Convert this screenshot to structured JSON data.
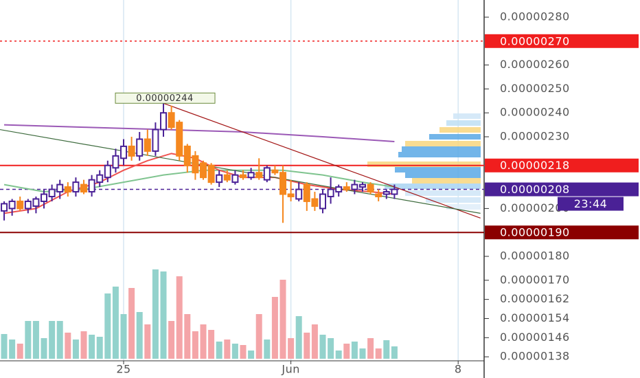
{
  "chart_data": {
    "type": "candlestick",
    "x": [
      0,
      1,
      2,
      3,
      4,
      5,
      6,
      7,
      8,
      9,
      10,
      11,
      12,
      13,
      14,
      15,
      16,
      17,
      18,
      19,
      20,
      21,
      22,
      23,
      24,
      25,
      26,
      27,
      28,
      29,
      30,
      31,
      32,
      33,
      34,
      35,
      36,
      37,
      38,
      39,
      40,
      41,
      42,
      43,
      44,
      45,
      46,
      47,
      48,
      49
    ],
    "open": [
      1.99e-06,
      2e-06,
      2.03e-06,
      2e-06,
      2.01e-06,
      2.03e-06,
      2.05e-06,
      2.07e-06,
      2.09e-06,
      2.07e-06,
      2.1e-06,
      2.07e-06,
      2.11e-06,
      2.13e-06,
      2.17e-06,
      2.21e-06,
      2.26e-06,
      2.22e-06,
      2.29e-06,
      2.24e-06,
      2.33e-06,
      2.4e-06,
      2.36e-06,
      2.26e-06,
      2.22e-06,
      2.19e-06,
      2.18e-06,
      2.11e-06,
      2.14e-06,
      2.11e-06,
      2.14e-06,
      2.13e-06,
      2.15e-06,
      2.12e-06,
      2.16e-06,
      2.15e-06,
      2.06e-06,
      2.04e-06,
      2.1e-06,
      2.04e-06,
      2e-06,
      2.05e-06,
      2.07e-06,
      2.09e-06,
      2.08e-06,
      2.09e-06,
      2.1e-06,
      2.06e-06,
      2.06e-06,
      2.06e-06
    ],
    "high": [
      2.03e-06,
      2.04e-06,
      2.05e-06,
      2.04e-06,
      2.05e-06,
      2.08e-06,
      2.1e-06,
      2.12e-06,
      2.11e-06,
      2.13e-06,
      2.12e-06,
      2.14e-06,
      2.16e-06,
      2.2e-06,
      2.25e-06,
      2.29e-06,
      2.3e-06,
      2.32e-06,
      2.33e-06,
      2.36e-06,
      2.44e-06,
      2.43e-06,
      2.37e-06,
      2.27e-06,
      2.24e-06,
      2.2e-06,
      2.19e-06,
      2.16e-06,
      2.16e-06,
      2.16e-06,
      2.16e-06,
      2.17e-06,
      2.21e-06,
      2.18e-06,
      2.18e-06,
      2.18e-06,
      2.12e-06,
      2.11e-06,
      2.11e-06,
      2.07e-06,
      2.08e-06,
      2.13e-06,
      2.1e-06,
      2.11e-06,
      2.12e-06,
      2.11e-06,
      2.11e-06,
      2.08e-06,
      2.08e-06,
      2.1e-06
    ],
    "low": [
      1.95e-06,
      1.97e-06,
      1.99e-06,
      1.98e-06,
      1.98e-06,
      2e-06,
      2.03e-06,
      2.04e-06,
      2.05e-06,
      2.05e-06,
      2.06e-06,
      2.05e-06,
      2.09e-06,
      2.11e-06,
      2.15e-06,
      2.18e-06,
      2.2e-06,
      2.2e-06,
      2.22e-06,
      2.22e-06,
      2.3e-06,
      2.33e-06,
      2.2e-06,
      2.15e-06,
      2.12e-06,
      2.12e-06,
      2.1e-06,
      2.09e-06,
      2.11e-06,
      2.1e-06,
      2.12e-06,
      2.12e-06,
      2.12e-06,
      2.11e-06,
      2.14e-06,
      1.94e-06,
      2.03e-06,
      2.03e-06,
      1.99e-06,
      1.99e-06,
      1.98e-06,
      2.02e-06,
      2.05e-06,
      2.07e-06,
      2.06e-06,
      2.07e-06,
      2.06e-06,
      2.03e-06,
      2.04e-06,
      2.04e-06
    ],
    "close": [
      2.02e-06,
      2.03e-06,
      2e-06,
      2.03e-06,
      2.04e-06,
      2.06e-06,
      2.08e-06,
      2.1e-06,
      2.07e-06,
      2.11e-06,
      2.07e-06,
      2.12e-06,
      2.14e-06,
      2.18e-06,
      2.22e-06,
      2.26e-06,
      2.22e-06,
      2.29e-06,
      2.24e-06,
      2.33e-06,
      2.4e-06,
      2.34e-06,
      2.22e-06,
      2.18e-06,
      2.15e-06,
      2.13e-06,
      2.11e-06,
      2.14e-06,
      2.12e-06,
      2.14e-06,
      2.13e-06,
      2.15e-06,
      2.13e-06,
      2.17e-06,
      2.15e-06,
      2.06e-06,
      2.05e-06,
      2.08e-06,
      2.03e-06,
      2.01e-06,
      2.06e-06,
      2.08e-06,
      2.09e-06,
      2.08e-06,
      2.1e-06,
      2.1e-06,
      2.07e-06,
      2.05e-06,
      2.07e-06,
      2.08e-06
    ],
    "volume": [
      36,
      28,
      22,
      55,
      55,
      30,
      55,
      55,
      38,
      28,
      40,
      35,
      32,
      95,
      105,
      65,
      103,
      68,
      50,
      130,
      127,
      55,
      120,
      65,
      40,
      50,
      42,
      25,
      28,
      22,
      20,
      12,
      65,
      28,
      90,
      115,
      30,
      62,
      38,
      50,
      35,
      30,
      12,
      22,
      25,
      15,
      30,
      15,
      27,
      18
    ],
    "up_color": "#4a2196",
    "down_color": "#f5881f",
    "volume_up_color": "#93d2cc",
    "volume_down_color": "#f4a5a8",
    "xlim": [
      -0.52,
      60.26
    ],
    "xticks": [
      {
        "value": 15,
        "label": "25"
      },
      {
        "value": 36,
        "label": "Jun"
      },
      {
        "value": 57,
        "label": "8"
      }
    ],
    "ylim": [
      1.3632e-06,
      2.8718e-06
    ],
    "yticks": [
      {
        "value": 2.8e-06,
        "label": "0.00000280"
      },
      {
        "value": 2.6e-06,
        "label": "0.00000260"
      },
      {
        "value": 2.5e-06,
        "label": "0.00000250"
      },
      {
        "value": 2.4e-06,
        "label": "0.00000240"
      },
      {
        "value": 2.3e-06,
        "label": "0.00000230"
      },
      {
        "value": 2e-06,
        "label": "0.00000200"
      },
      {
        "value": 1.8e-06,
        "label": "0.00000180"
      },
      {
        "value": 1.7e-06,
        "label": "0.00000170"
      },
      {
        "value": 1.62e-06,
        "label": "0.00000162"
      },
      {
        "value": 1.54e-06,
        "label": "0.00000154"
      },
      {
        "value": 1.46e-06,
        "label": "0.00000146"
      },
      {
        "value": 1.38e-06,
        "label": "0.00000138"
      }
    ],
    "grid": "x",
    "moving_averages": [
      {
        "color": "#9b59b6",
        "x": [
          0,
          10,
          20,
          30,
          40,
          49
        ],
        "values": [
          2.35e-06,
          2.34e-06,
          2.33e-06,
          2.32e-06,
          2.3e-06,
          2.28e-06
        ]
      },
      {
        "color": "#7fc48f",
        "x": [
          0,
          5,
          10,
          15,
          20,
          25,
          30,
          35,
          40,
          45,
          49
        ],
        "values": [
          2.1e-06,
          2.07e-06,
          2.08e-06,
          2.11e-06,
          2.14e-06,
          2.16e-06,
          2.16e-06,
          2.16e-06,
          2.14e-06,
          2.11e-06,
          2.09e-06
        ]
      },
      {
        "color": "#ef5350",
        "x": [
          0,
          4,
          8,
          12,
          15,
          18,
          21,
          24,
          27,
          30,
          34,
          38,
          42,
          46,
          49
        ],
        "values": [
          1.98e-06,
          2e-06,
          2.07e-06,
          2.11e-06,
          2.16e-06,
          2.2e-06,
          2.23e-06,
          2.21e-06,
          2.16e-06,
          2.13e-06,
          2.13e-06,
          2.1e-06,
          2.08e-06,
          2.07e-06,
          2.06e-06
        ]
      }
    ],
    "trendlines": [
      {
        "color": "#a31515",
        "x": [
          20,
          59.8
        ],
        "values": [
          2.44e-06,
          1.96e-06
        ]
      },
      {
        "color": "#3d6b3d",
        "x": [
          -0.52,
          59.8
        ],
        "values": [
          2.33e-06,
          1.98e-06
        ]
      }
    ],
    "levels": [
      {
        "value": 2.7e-06,
        "label": "0.00000270",
        "color": "#f01e1e",
        "style": "dotted"
      },
      {
        "value": 2.18e-06,
        "label": "0.00000218",
        "color": "#f01e1e",
        "style": "solid"
      },
      {
        "value": 2.08e-06,
        "label": "0.00000208",
        "color": "#4a2196",
        "style": "dashed"
      },
      {
        "value": 1.9e-06,
        "label": "0.00000190",
        "color": "#8b0000",
        "style": "solid"
      }
    ],
    "countdown": "23:44",
    "annotations": [
      {
        "x": 20,
        "value": 2.44e-06,
        "label": "0.00000244"
      }
    ]
  }
}
